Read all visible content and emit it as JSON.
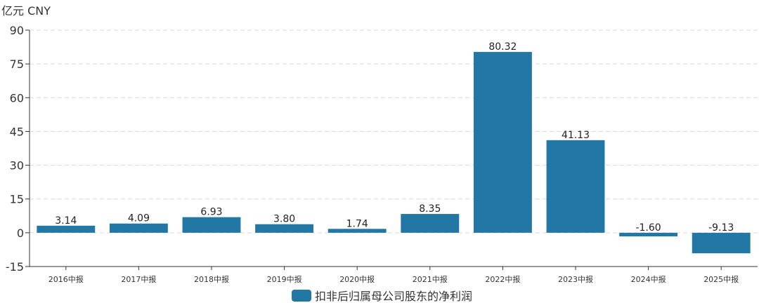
{
  "chart_data": {
    "type": "bar",
    "unit_label": "亿元 CNY",
    "categories": [
      "2016中报",
      "2017中报",
      "2018中报",
      "2019中报",
      "2020中报",
      "2021中报",
      "2022中报",
      "2023中报",
      "2024中报",
      "2025中报"
    ],
    "series": [
      {
        "name": "扣非后归属母公司股东的净利润",
        "values": [
          3.14,
          4.09,
          6.93,
          3.8,
          1.74,
          8.35,
          80.32,
          41.13,
          -1.6,
          -9.13
        ],
        "labels": [
          "3.14",
          "4.09",
          "6.93",
          "3.80",
          "1.74",
          "8.35",
          "80.32",
          "41.13",
          "-1.60",
          "-9.13"
        ]
      }
    ],
    "yticks": [
      "90",
      "75",
      "60",
      "45",
      "30",
      "15",
      "0",
      "-15"
    ],
    "ylim": [
      -15,
      90
    ],
    "grid": true,
    "legend_position": "bottom-center",
    "colors": {
      "bar": "#2277a4",
      "grid": "#d9d9d9",
      "axis": "#333333"
    }
  }
}
